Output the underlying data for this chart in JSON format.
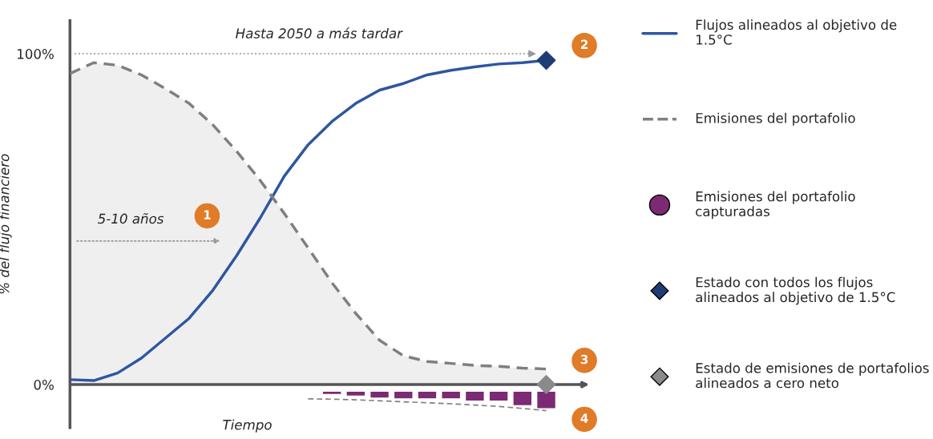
{
  "chart_data": {
    "type": "line",
    "ylabel": "% del flujo financiero",
    "xlabel": "Tiempo",
    "categories": [
      null,
      null,
      null,
      null,
      null,
      null,
      null,
      null,
      null,
      null,
      null,
      null,
      null,
      null,
      null,
      null,
      null,
      null,
      null,
      null,
      null
    ],
    "ylim": [
      -13,
      110
    ],
    "yticks": [
      {
        "value": 0,
        "label": "0%"
      },
      {
        "value": 100,
        "label": "100%"
      }
    ],
    "grid": false,
    "ref_lines": [
      {
        "axis": "y",
        "value": 0,
        "color": "#555555",
        "line_style": "solid"
      },
      {
        "axis": "y",
        "value": 100,
        "color": "#999999",
        "line_style": "dotted",
        "label": "Hasta 2050 a más tardar"
      }
    ],
    "legend": "right",
    "series": [
      {
        "name": "Flujos alineados al objetivo de 1.5°C",
        "color": "#2f56a0",
        "line_style": "solid",
        "values": [
          1.5,
          1.2,
          3.5,
          8,
          14,
          20,
          28.5,
          39,
          50.5,
          63,
          72.5,
          79.5,
          85,
          89,
          91,
          93.6,
          95,
          96,
          96.9,
          97.3,
          98
        ]
      },
      {
        "name": "Emisiones del portafolio",
        "type": "area",
        "color": "#7f7f7f",
        "line_style": "dashed",
        "values": [
          94,
          97.3,
          96.5,
          93.6,
          89.5,
          85,
          78.5,
          70.5,
          61.6,
          51.7,
          41.3,
          30.8,
          21.5,
          13.4,
          8.7,
          7,
          6.4,
          5.8,
          5.5,
          5,
          4.7
        ]
      },
      {
        "name": "Emisiones del portafolio capturadas",
        "type": "bar",
        "color": "#7b2a73",
        "values": [
          null,
          null,
          null,
          null,
          null,
          null,
          null,
          null,
          null,
          null,
          null,
          -1,
          -1.5,
          -2.1,
          -2.3,
          -2.3,
          -2.3,
          -3,
          -3,
          -4.4,
          -5.3
        ],
        "base": [
          null,
          null,
          null,
          null,
          null,
          null,
          null,
          null,
          null,
          null,
          null,
          -2,
          -2,
          -2,
          -2,
          -2,
          -2,
          -2,
          -2,
          -2,
          -2
        ]
      },
      {
        "type": "line",
        "color": "#7f7f7f",
        "line_style": "dashed",
        "values": [
          null,
          null,
          null,
          null,
          null,
          null,
          null,
          null,
          null,
          null,
          -4.3,
          -4.4,
          -4.6,
          -4.9,
          -5.2,
          -5.5,
          -5.8,
          -6.2,
          -6.6,
          -7.2,
          -7.9
        ]
      },
      {
        "name": "Estado con todos los flujos alineados al objetivo de 1.5°C",
        "type": "scatter",
        "color": "#1f3d73",
        "marker": "diamond",
        "values": [
          null,
          null,
          null,
          null,
          null,
          null,
          null,
          null,
          null,
          null,
          null,
          null,
          null,
          null,
          null,
          null,
          null,
          null,
          null,
          null,
          98
        ]
      },
      {
        "name": "Estado de emisiones de portafolios alineados a cero neto",
        "type": "scatter",
        "color": "#8a8a8a",
        "marker": "diamond",
        "values": [
          null,
          null,
          null,
          null,
          null,
          null,
          null,
          null,
          null,
          null,
          null,
          null,
          null,
          null,
          null,
          null,
          null,
          null,
          null,
          null,
          0
        ]
      }
    ],
    "annotations": [
      "5-10 años",
      "1",
      "2",
      "3",
      "4"
    ]
  }
}
